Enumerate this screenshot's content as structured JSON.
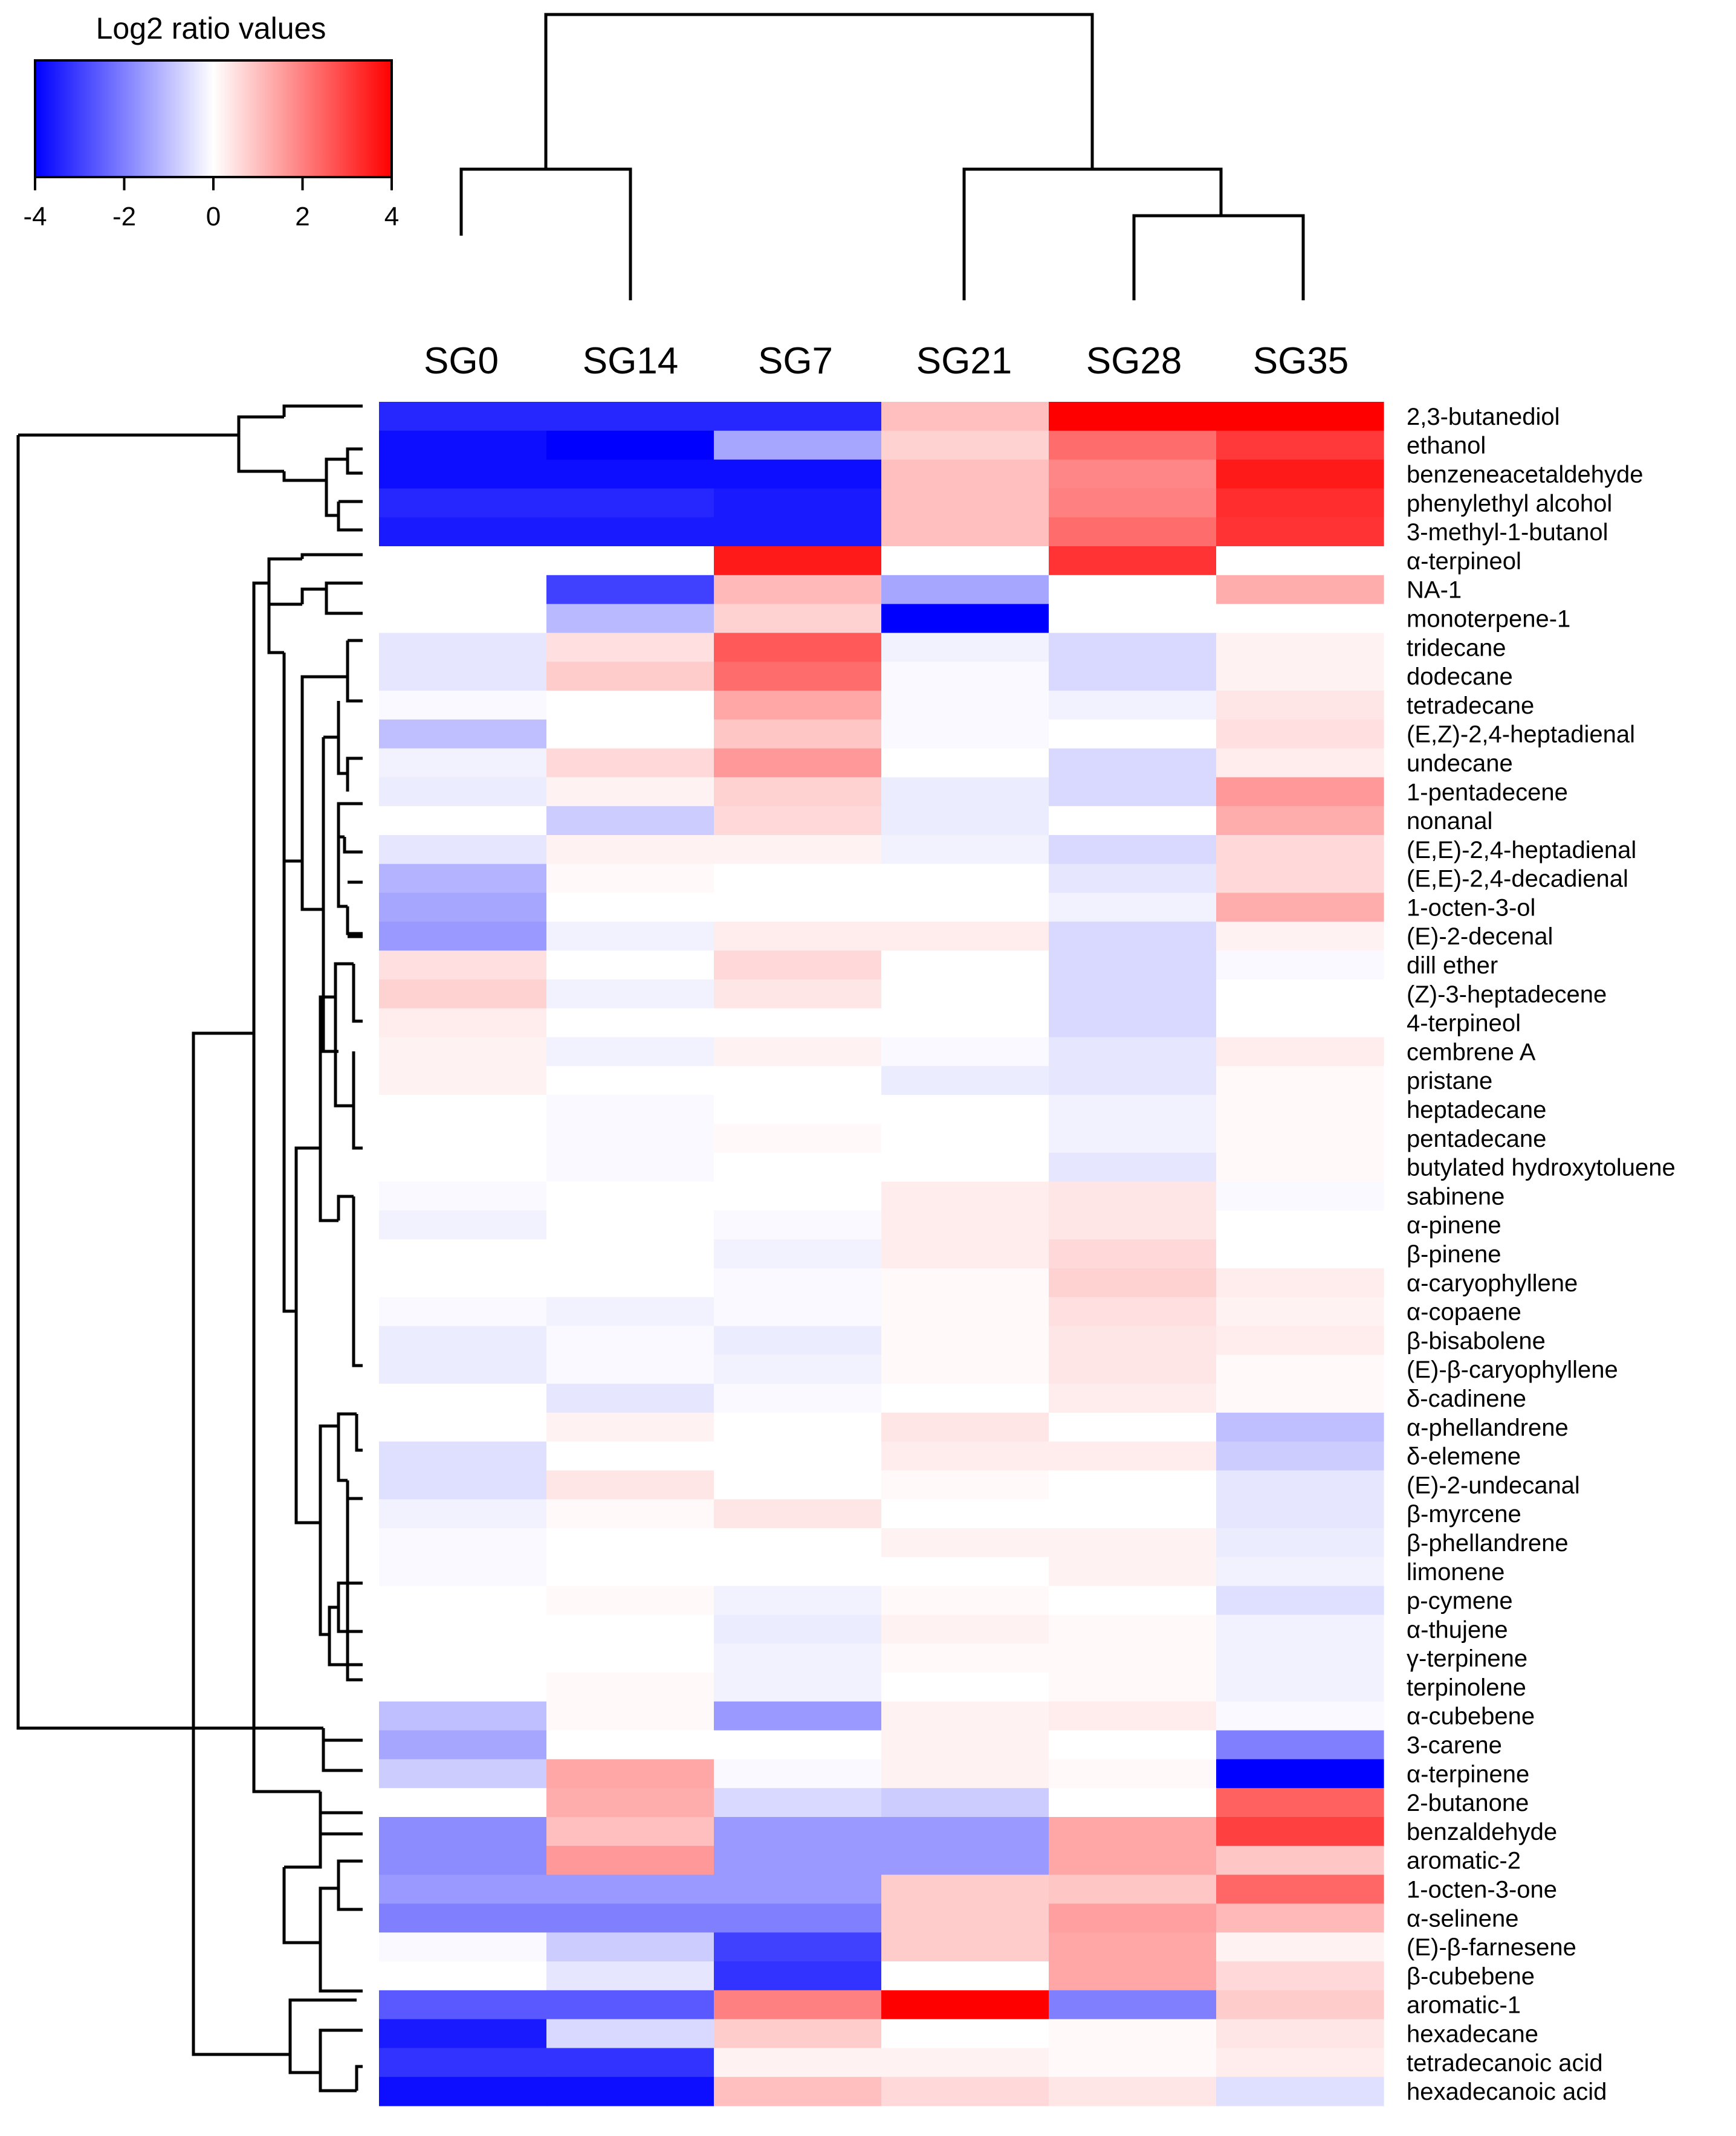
{
  "chart_data": {
    "type": "heatmap",
    "title": "",
    "legend": {
      "title": "Log2 ratio values",
      "min": -4,
      "max": 4,
      "ticks": [
        "-4",
        "-2",
        "0",
        "2",
        "4"
      ],
      "colors": {
        "low": "#0000ff",
        "mid": "#ffffff",
        "high": "#ff0000"
      },
      "placement": "top-left"
    },
    "columns": [
      "SG0",
      "SG14",
      "SG7",
      "SG21",
      "SG28",
      "SG35"
    ],
    "rows": [
      "2,3-butanediol",
      "ethanol",
      "benzeneacetaldehyde",
      "phenylethyl alcohol",
      "3-methyl-1-butanol",
      "α-terpineol",
      "NA-1",
      "monoterpene-1",
      "tridecane",
      "dodecane",
      "tetradecane",
      "(E,Z)-2,4-heptadienal",
      "undecane",
      "1-pentadecene",
      "nonanal",
      "(E,E)-2,4-heptadienal",
      "(E,E)-2,4-decadienal",
      "1-octen-3-ol",
      "(E)-2-decenal",
      "dill ether",
      "(Z)-3-heptadecene",
      "4-terpineol",
      "cembrene A",
      "pristane",
      "heptadecane",
      "pentadecane",
      "butylated hydroxytoluene",
      "sabinene",
      "α-pinene",
      "β-pinene",
      "α-caryophyllene",
      "α-copaene",
      "β-bisabolene",
      "(E)-β-caryophyllene",
      "δ-cadinene",
      "α-phellandrene",
      "δ-elemene",
      "(E)-2-undecanal",
      "β-myrcene",
      "β-phellandrene",
      "limonene",
      "p-cymene",
      "α-thujene",
      "γ-terpinene",
      "terpinolene",
      "α-cubebene",
      "3-carene",
      "α-terpinene",
      "2-butanone",
      "benzaldehyde",
      "aromatic-2",
      "1-octen-3-one",
      "α-selinene",
      "(E)-β-farnesene",
      "β-cubebene",
      "aromatic-1",
      "hexadecane",
      "tetradecanoic acid",
      "hexadecanoic acid"
    ],
    "values": [
      [
        -3.4,
        -3.4,
        -3.4,
        1.0,
        4.0,
        4.0
      ],
      [
        -3.8,
        -4.0,
        -1.4,
        0.7,
        2.3,
        3.1
      ],
      [
        -3.8,
        -3.8,
        -3.8,
        1.0,
        1.9,
        3.6
      ],
      [
        -3.4,
        -3.4,
        -3.6,
        1.0,
        2.0,
        3.3
      ],
      [
        -3.6,
        -3.6,
        -3.6,
        1.0,
        2.3,
        3.2
      ],
      [
        0.0,
        0.0,
        3.6,
        0.0,
        3.2,
        0.0
      ],
      [
        0.0,
        -3.0,
        1.1,
        -1.4,
        0.0,
        1.3
      ],
      [
        0.0,
        -1.1,
        0.7,
        -4.0,
        0.0,
        0.0
      ],
      [
        -0.4,
        0.5,
        2.6,
        -0.2,
        -0.6,
        0.2
      ],
      [
        -0.4,
        0.8,
        2.3,
        -0.1,
        -0.6,
        0.2
      ],
      [
        -0.1,
        0.0,
        1.4,
        -0.1,
        -0.2,
        0.4
      ],
      [
        -1.0,
        0.0,
        0.9,
        -0.1,
        0.0,
        0.5
      ],
      [
        -0.2,
        0.6,
        1.6,
        0.0,
        -0.6,
        0.3
      ],
      [
        -0.3,
        0.2,
        0.7,
        -0.3,
        -0.6,
        1.6
      ],
      [
        0.0,
        -0.8,
        0.6,
        -0.3,
        0.0,
        1.3
      ],
      [
        -0.4,
        0.2,
        0.2,
        -0.2,
        -0.6,
        0.6
      ],
      [
        -1.2,
        0.1,
        0.0,
        0.0,
        -0.4,
        0.6
      ],
      [
        -1.4,
        0.0,
        0.0,
        0.0,
        -0.2,
        1.3
      ],
      [
        -1.6,
        -0.2,
        0.3,
        0.3,
        -0.6,
        0.2
      ],
      [
        0.5,
        0.0,
        0.6,
        0.0,
        -0.6,
        -0.1
      ],
      [
        0.7,
        -0.2,
        0.4,
        0.0,
        -0.6,
        0.0
      ],
      [
        0.3,
        0.0,
        0.0,
        0.0,
        -0.6,
        0.0
      ],
      [
        0.2,
        -0.2,
        0.2,
        -0.1,
        -0.4,
        0.3
      ],
      [
        0.2,
        0.0,
        0.0,
        -0.3,
        -0.4,
        0.1
      ],
      [
        0.0,
        -0.1,
        0.0,
        0.0,
        -0.2,
        0.1
      ],
      [
        0.0,
        -0.1,
        0.1,
        0.0,
        -0.2,
        0.1
      ],
      [
        0.0,
        -0.1,
        0.0,
        0.0,
        -0.4,
        0.1
      ],
      [
        -0.1,
        0.0,
        0.0,
        0.3,
        0.4,
        -0.1
      ],
      [
        -0.2,
        0.0,
        -0.1,
        0.3,
        0.4,
        0.0
      ],
      [
        0.0,
        0.0,
        -0.2,
        0.3,
        0.6,
        0.0
      ],
      [
        0.0,
        0.0,
        -0.1,
        0.1,
        0.7,
        0.3
      ],
      [
        -0.1,
        -0.2,
        -0.1,
        0.1,
        0.5,
        0.2
      ],
      [
        -0.3,
        -0.1,
        -0.3,
        0.1,
        0.4,
        0.3
      ],
      [
        -0.3,
        -0.1,
        -0.2,
        0.1,
        0.4,
        0.1
      ],
      [
        0.0,
        -0.4,
        -0.1,
        0.0,
        0.3,
        0.1
      ],
      [
        0.0,
        0.2,
        0.0,
        0.4,
        0.0,
        -1.0
      ],
      [
        -0.5,
        0.0,
        0.0,
        0.3,
        0.3,
        -0.8
      ],
      [
        -0.5,
        0.4,
        0.0,
        0.1,
        0.0,
        -0.4
      ],
      [
        -0.2,
        0.1,
        0.4,
        0.0,
        0.0,
        -0.4
      ],
      [
        -0.1,
        0.0,
        0.0,
        0.2,
        0.2,
        -0.3
      ],
      [
        -0.1,
        0.0,
        0.0,
        0.0,
        0.2,
        -0.2
      ],
      [
        0.0,
        0.1,
        -0.2,
        0.1,
        0.0,
        -0.5
      ],
      [
        0.0,
        0.0,
        -0.3,
        0.2,
        0.1,
        -0.2
      ],
      [
        0.0,
        0.0,
        -0.2,
        0.1,
        0.1,
        -0.2
      ],
      [
        0.0,
        0.1,
        -0.2,
        0.0,
        0.1,
        -0.2
      ],
      [
        -1.0,
        0.1,
        -1.6,
        0.2,
        0.3,
        -0.1
      ],
      [
        -1.4,
        0.0,
        0.0,
        0.2,
        0.0,
        -2.0
      ],
      [
        -0.8,
        1.4,
        -0.1,
        0.2,
        0.1,
        -4.0
      ],
      [
        0.0,
        1.3,
        -0.6,
        -0.8,
        0.0,
        2.5
      ],
      [
        -1.8,
        1.0,
        -1.6,
        -1.6,
        1.4,
        3.0
      ],
      [
        -1.8,
        1.6,
        -1.6,
        -1.6,
        1.4,
        0.9
      ],
      [
        -1.6,
        -1.6,
        -1.6,
        0.8,
        0.9,
        2.4
      ],
      [
        -2.0,
        -2.0,
        -2.0,
        0.8,
        1.5,
        1.1
      ],
      [
        -0.1,
        -0.8,
        -3.0,
        0.8,
        1.4,
        0.2
      ],
      [
        0.0,
        -0.4,
        -3.2,
        0.0,
        1.4,
        0.6
      ],
      [
        -2.6,
        -2.6,
        2.0,
        4.0,
        -2.0,
        0.8
      ],
      [
        -3.6,
        -0.6,
        0.8,
        0.0,
        0.1,
        0.4
      ],
      [
        -3.2,
        -3.2,
        0.2,
        0.2,
        0.1,
        0.3
      ],
      [
        -3.8,
        -3.8,
        1.0,
        0.6,
        0.4,
        -0.5
      ]
    ],
    "row_dendrogram": "hierarchical clustering of compounds (left)",
    "column_dendrogram": "hierarchical clustering of samples (top)"
  }
}
